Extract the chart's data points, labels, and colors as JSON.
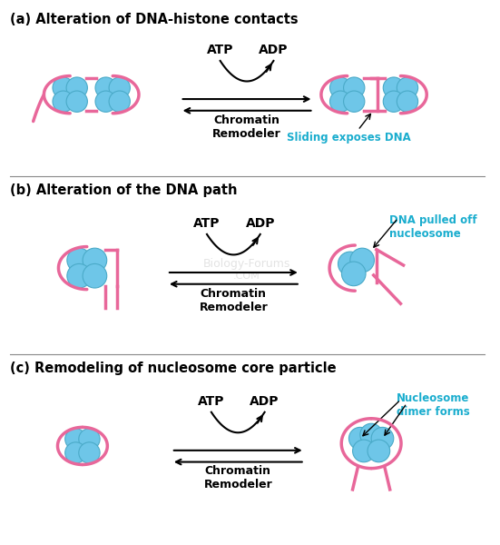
{
  "title_a": "(a) Alteration of DNA-histone contacts",
  "title_b": "(b) Alteration of the DNA path",
  "title_c": "(c) Remodeling of nucleosome core particle",
  "label_atp": "ATP",
  "label_adp": "ADP",
  "label_chromatin": "Chromatin\nRemodeler",
  "label_sliding": "Sliding exposes DNA",
  "label_dna_pulled": "DNA pulled off\nnucleosome",
  "label_nucleosome_dimer": "Nucleosome\ndimer forms",
  "bg_color": "#ffffff",
  "title_color": "#000000",
  "cyan_label_color": "#1AADCE",
  "dna_color": "#E8679A",
  "histone_color": "#6EC6E8",
  "histone_outline": "#4AAAC8",
  "arrow_color": "#000000",
  "watermark": "Biology-Forums\n.COM"
}
